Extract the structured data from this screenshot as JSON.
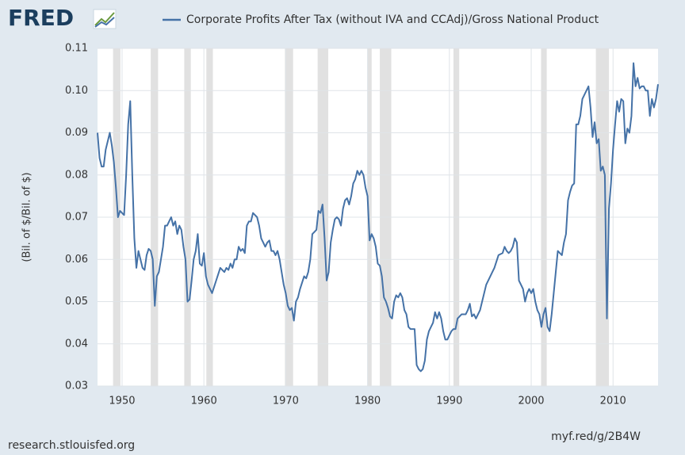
{
  "logo": "FRED",
  "chart_data": {
    "type": "line",
    "y_label": "(Bil. of $/Bil. of $)",
    "x": [
      1947,
      1947.25,
      1947.5,
      1947.75,
      1948,
      1948.5,
      1948.75,
      1949,
      1949.25,
      1949.5,
      1949.75,
      1950,
      1950.25,
      1950.5,
      1950.75,
      1951,
      1951.25,
      1951.5,
      1951.75,
      1952,
      1952.5,
      1952.75,
      1953,
      1953.25,
      1953.5,
      1953.75,
      1954,
      1954.25,
      1954.5,
      1955,
      1955.25,
      1955.5,
      1955.75,
      1956,
      1956.25,
      1956.5,
      1956.75,
      1957,
      1957.25,
      1957.5,
      1957.75,
      1958,
      1958.25,
      1958.5,
      1958.75,
      1959,
      1959.25,
      1959.5,
      1959.75,
      1960,
      1960.25,
      1960.5,
      1961,
      1961.5,
      1962,
      1962.5,
      1962.75,
      1963,
      1963.25,
      1963.5,
      1963.75,
      1964,
      1964.25,
      1964.5,
      1964.75,
      1965,
      1965.25,
      1965.5,
      1965.75,
      1966,
      1966.25,
      1966.5,
      1966.75,
      1967,
      1967.25,
      1967.5,
      1967.75,
      1968,
      1968.25,
      1968.5,
      1968.75,
      1969,
      1969.25,
      1969.5,
      1969.75,
      1970,
      1970.25,
      1970.5,
      1970.75,
      1971,
      1971.25,
      1971.5,
      1971.75,
      1972,
      1972.25,
      1972.5,
      1972.75,
      1973,
      1973.25,
      1973.5,
      1973.75,
      1974,
      1974.25,
      1974.5,
      1974.75,
      1975,
      1975.25,
      1975.5,
      1975.75,
      1976,
      1976.25,
      1976.5,
      1976.75,
      1977,
      1977.25,
      1977.5,
      1977.75,
      1978,
      1978.25,
      1978.5,
      1978.75,
      1979,
      1979.25,
      1979.5,
      1979.75,
      1980,
      1980.25,
      1980.5,
      1980.75,
      1981,
      1981.25,
      1981.5,
      1981.75,
      1982,
      1982.25,
      1982.5,
      1982.75,
      1983,
      1983.25,
      1983.5,
      1983.75,
      1984,
      1984.25,
      1984.5,
      1984.75,
      1985,
      1985.25,
      1985.5,
      1985.75,
      1986,
      1986.25,
      1986.5,
      1986.75,
      1987,
      1987.25,
      1987.5,
      1987.75,
      1988,
      1988.25,
      1988.5,
      1988.75,
      1989,
      1989.25,
      1989.5,
      1989.75,
      1990,
      1990.25,
      1990.5,
      1990.75,
      1991,
      1991.5,
      1992,
      1992.25,
      1992.5,
      1992.75,
      1993,
      1993.25,
      1993.75,
      1994,
      1994.5,
      1995,
      1995.25,
      1995.5,
      1996,
      1996.5,
      1996.75,
      1997,
      1997.25,
      1997.5,
      1997.75,
      1998,
      1998.25,
      1998.5,
      1998.75,
      1999,
      1999.25,
      1999.5,
      1999.75,
      2000,
      2000.25,
      2000.5,
      2000.75,
      2001,
      2001.25,
      2001.5,
      2001.75,
      2002,
      2002.25,
      2002.5,
      2002.75,
      2003,
      2003.25,
      2003.5,
      2003.75,
      2004,
      2004.25,
      2004.5,
      2004.75,
      2005,
      2005.25,
      2005.5,
      2005.75,
      2006,
      2006.25,
      2006.5,
      2006.75,
      2007,
      2007.25,
      2007.5,
      2007.75,
      2008,
      2008.25,
      2008.5,
      2008.75,
      2009,
      2009.25,
      2009.5,
      2009.75,
      2010,
      2010.25,
      2010.5,
      2010.75,
      2011,
      2011.25,
      2011.5,
      2011.75,
      2012,
      2012.25,
      2012.5,
      2012.75,
      2013,
      2013.25,
      2013.5,
      2013.75,
      2014,
      2014.25,
      2014.5,
      2014.75,
      2015,
      2015.25,
      2015.5
    ],
    "series": [
      {
        "name": "Corporate Profits After Tax (without IVA and CCAdj)/Gross National Product",
        "color": "#4572a7",
        "values": [
          0.09,
          0.084,
          0.082,
          0.082,
          0.086,
          0.09,
          0.087,
          0.083,
          0.077,
          0.07,
          0.0715,
          0.071,
          0.0705,
          0.08,
          0.092,
          0.0975,
          0.08,
          0.065,
          0.058,
          0.062,
          0.058,
          0.0575,
          0.061,
          0.0625,
          0.062,
          0.06,
          0.049,
          0.056,
          0.057,
          0.063,
          0.068,
          0.068,
          0.069,
          0.07,
          0.068,
          0.069,
          0.066,
          0.068,
          0.067,
          0.063,
          0.06,
          0.05,
          0.0505,
          0.055,
          0.06,
          0.062,
          0.066,
          0.059,
          0.0585,
          0.0615,
          0.056,
          0.054,
          0.052,
          0.055,
          0.058,
          0.057,
          0.058,
          0.0575,
          0.059,
          0.058,
          0.06,
          0.06,
          0.063,
          0.062,
          0.0625,
          0.0615,
          0.068,
          0.069,
          0.069,
          0.071,
          0.0705,
          0.07,
          0.068,
          0.065,
          0.064,
          0.063,
          0.064,
          0.0645,
          0.062,
          0.062,
          0.061,
          0.062,
          0.06,
          0.057,
          0.054,
          0.052,
          0.049,
          0.048,
          0.0485,
          0.0455,
          0.05,
          0.051,
          0.053,
          0.0545,
          0.056,
          0.0555,
          0.057,
          0.06,
          0.066,
          0.0665,
          0.067,
          0.0715,
          0.071,
          0.073,
          0.065,
          0.055,
          0.057,
          0.064,
          0.067,
          0.0695,
          0.07,
          0.0695,
          0.068,
          0.072,
          0.074,
          0.0745,
          0.073,
          0.075,
          0.078,
          0.079,
          0.081,
          0.08,
          0.081,
          0.08,
          0.077,
          0.075,
          0.0645,
          0.066,
          0.065,
          0.063,
          0.059,
          0.0585,
          0.056,
          0.051,
          0.05,
          0.0485,
          0.0465,
          0.046,
          0.05,
          0.0515,
          0.051,
          0.052,
          0.051,
          0.048,
          0.047,
          0.044,
          0.0435,
          0.0435,
          0.0435,
          0.035,
          0.034,
          0.0335,
          0.034,
          0.036,
          0.041,
          0.043,
          0.044,
          0.045,
          0.0475,
          0.046,
          0.0475,
          0.046,
          0.043,
          0.041,
          0.041,
          0.042,
          0.043,
          0.0435,
          0.0435,
          0.046,
          0.047,
          0.047,
          0.048,
          0.0495,
          0.0465,
          0.047,
          0.046,
          0.048,
          0.05,
          0.054,
          0.056,
          0.057,
          0.058,
          0.061,
          0.0615,
          0.063,
          0.062,
          0.0615,
          0.062,
          0.063,
          0.065,
          0.064,
          0.055,
          0.054,
          0.053,
          0.05,
          0.052,
          0.053,
          0.052,
          0.053,
          0.05,
          0.048,
          0.047,
          0.044,
          0.047,
          0.0485,
          0.044,
          0.043,
          0.047,
          0.052,
          0.057,
          0.062,
          0.0615,
          0.061,
          0.064,
          0.066,
          0.074,
          0.076,
          0.0775,
          0.078,
          0.092,
          0.092,
          0.094,
          0.098,
          0.099,
          0.1,
          0.101,
          0.096,
          0.089,
          0.0925,
          0.0875,
          0.0885,
          0.081,
          0.082,
          0.08,
          0.046,
          0.072,
          0.078,
          0.086,
          0.092,
          0.0975,
          0.095,
          0.098,
          0.0975,
          0.0875,
          0.091,
          0.09,
          0.094,
          0.1065,
          0.101,
          0.103,
          0.1005,
          0.101,
          0.101,
          0.1,
          0.1,
          0.094,
          0.098,
          0.096,
          0.098,
          0.1015
        ]
      }
    ],
    "recessions": [
      [
        1948.9,
        1949.8
      ],
      [
        1953.5,
        1954.4
      ],
      [
        1957.6,
        1958.4
      ],
      [
        1960.3,
        1961.1
      ],
      [
        1969.9,
        1970.9
      ],
      [
        1973.9,
        1975.2
      ],
      [
        1980.0,
        1980.5
      ],
      [
        1981.5,
        1982.9
      ],
      [
        1990.5,
        1991.2
      ],
      [
        2001.2,
        2001.9
      ],
      [
        2007.9,
        2009.5
      ]
    ],
    "recession_color": "#e1e1e1",
    "xlim": [
      1947,
      2015.5
    ],
    "xticks": [
      1950,
      1960,
      1970,
      1980,
      1990,
      2000,
      2010
    ],
    "ylim": [
      0.03,
      0.11
    ],
    "yticks": [
      0.03,
      0.04,
      0.05,
      0.06,
      0.07,
      0.08,
      0.09,
      {
        "value": 0.1,
        "label": "0.10"
      },
      0.11
    ],
    "grid": true
  },
  "footer": {
    "source": "research.stlouisfed.org",
    "link": "myf.red/g/2B4W"
  }
}
